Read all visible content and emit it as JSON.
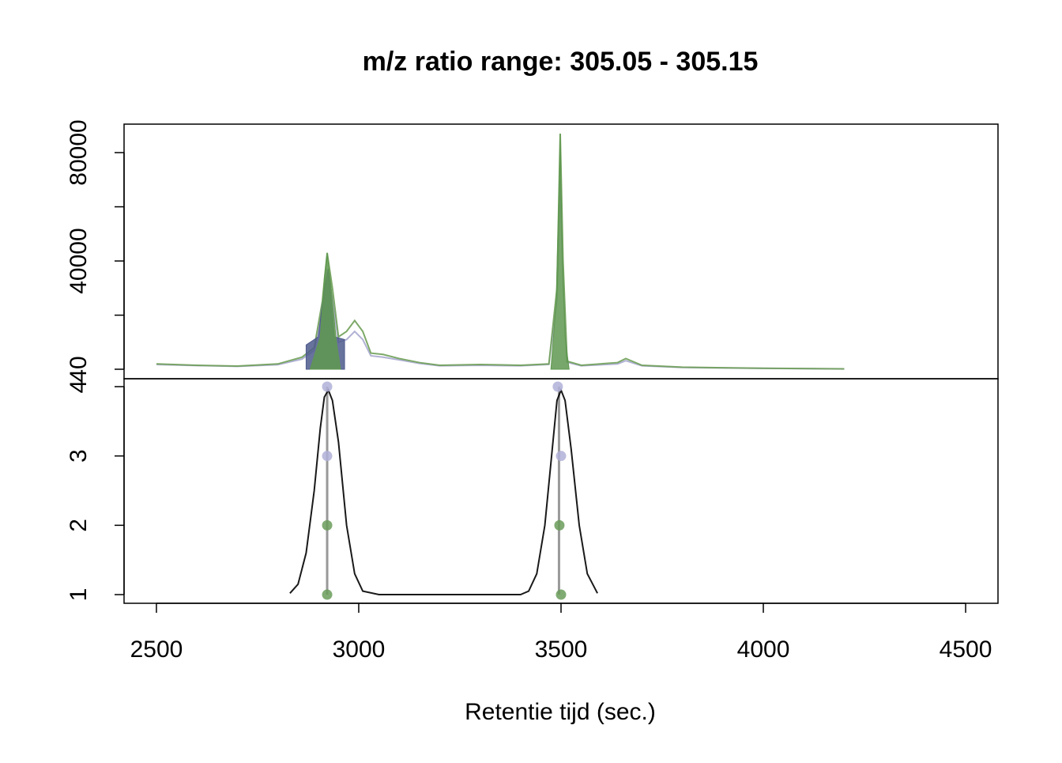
{
  "chart_data": [
    {
      "type": "line",
      "title": "m/z ratio range: 305.05 - 305.15",
      "xlim": [
        2420,
        4580
      ],
      "ylim": [
        -3464,
        90510
      ],
      "yticks": [
        40,
        40000,
        80000
      ],
      "minor_yticks": [
        20000,
        60000
      ],
      "series": [
        {
          "color": "#a9a9d0",
          "fill": false,
          "x": [
            2500,
            2600,
            2700,
            2800,
            2860,
            2890,
            2910,
            2922,
            2935,
            2950,
            2970,
            2990,
            3010,
            3030,
            3060,
            3100,
            3150,
            3200,
            3300,
            3400,
            3470,
            3490,
            3498,
            3505,
            3515,
            3550,
            3640,
            3660,
            3700,
            3800,
            3900,
            4000,
            4100,
            4200
          ],
          "values": [
            1800,
            1400,
            1100,
            1700,
            3800,
            7000,
            22000,
            37000,
            26000,
            10000,
            11000,
            14000,
            11000,
            5000,
            4500,
            3500,
            2200,
            1300,
            1500,
            1300,
            1800,
            26000,
            70000,
            33000,
            2600,
            1300,
            2000,
            3200,
            1300,
            700,
            500,
            350,
            250,
            150
          ]
        },
        {
          "color": "#6fa058",
          "fill": false,
          "x": [
            2500,
            2600,
            2700,
            2800,
            2860,
            2890,
            2910,
            2922,
            2935,
            2950,
            2970,
            2990,
            3010,
            3030,
            3060,
            3100,
            3150,
            3200,
            3300,
            3400,
            3470,
            3490,
            3498,
            3505,
            3515,
            3550,
            3640,
            3660,
            3700,
            3800,
            3900,
            4000,
            4100,
            4200
          ],
          "values": [
            2000,
            1500,
            1200,
            2000,
            4500,
            8000,
            25000,
            43000,
            30000,
            12000,
            14000,
            18000,
            14000,
            6000,
            5500,
            4000,
            2500,
            1500,
            1800,
            1500,
            2000,
            30000,
            87000,
            40000,
            3000,
            1500,
            2500,
            4000,
            1500,
            800,
            600,
            400,
            300,
            200
          ]
        },
        {
          "color": "#4e5a8c",
          "fill": true,
          "x": [
            2870,
            2870,
            2900,
            2915,
            2925,
            2940,
            2965,
            2965
          ],
          "values": [
            40,
            9000,
            12000,
            30000,
            37000,
            12000,
            11000,
            40
          ]
        },
        {
          "color": "#5f9850",
          "fill": true,
          "x": [
            2880,
            2905,
            2915,
            2922,
            2932,
            2945,
            2955
          ],
          "values": [
            40,
            12000,
            34000,
            43000,
            30000,
            10000,
            40
          ]
        },
        {
          "color": "#5f9850",
          "fill": true,
          "x": [
            3475,
            3488,
            3494,
            3498,
            3503,
            3510,
            3520
          ],
          "values": [
            40,
            25000,
            60000,
            87000,
            45000,
            12000,
            40
          ]
        }
      ]
    },
    {
      "type": "line",
      "xlabel": "Retentie tijd (sec.)",
      "xlim": [
        2420,
        4580
      ],
      "ylim": [
        0.875,
        4.114
      ],
      "xticks": [
        2500,
        3000,
        3500,
        4000,
        4500
      ],
      "yticks": [
        1,
        2,
        3,
        4
      ],
      "series": [
        {
          "color": "#000000",
          "x": [
            2830,
            2850,
            2870,
            2890,
            2905,
            2915,
            2925,
            2935,
            2950,
            2970,
            2990,
            3010,
            3050,
            3400,
            3420,
            3440,
            3460,
            3475,
            3490,
            3500,
            3510,
            3525,
            3545,
            3565,
            3590
          ],
          "values": [
            1.02,
            1.15,
            1.6,
            2.5,
            3.4,
            3.85,
            3.95,
            3.8,
            3.2,
            2.0,
            1.3,
            1.05,
            1.0,
            1.0,
            1.05,
            1.3,
            2.0,
            2.9,
            3.8,
            3.95,
            3.8,
            3.1,
            2.0,
            1.3,
            1.02
          ]
        }
      ],
      "vlines": [
        2922,
        3495
      ],
      "points": [
        {
          "color": "#b0b0d8",
          "x": [
            2922,
            2922,
            3492,
            3500
          ],
          "values": [
            4,
            3,
            4,
            3
          ]
        },
        {
          "color": "#6a9c5a",
          "x": [
            2922,
            2922,
            3496,
            3500
          ],
          "values": [
            2,
            1,
            2,
            1
          ]
        }
      ]
    }
  ]
}
